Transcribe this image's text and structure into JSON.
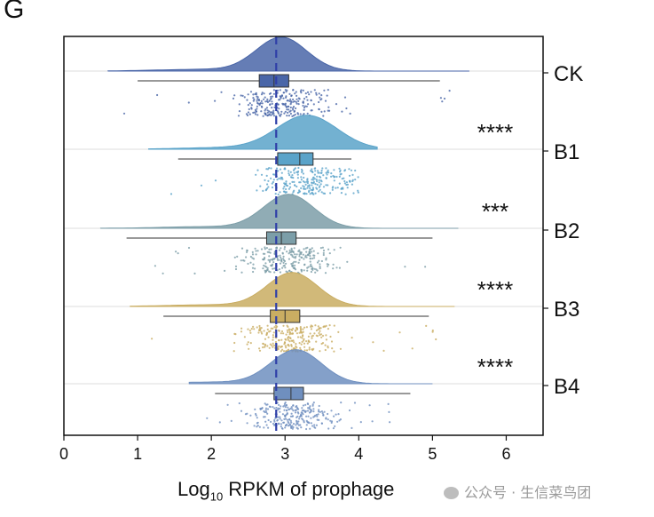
{
  "panel_label": "G",
  "watermark": "公众号 · 生信菜鸟团",
  "x_axis": {
    "label_prefix": "Log",
    "label_sub": "10",
    "label_suffix": " RPKM of prophage"
  },
  "chart_data": {
    "type": "raincloud",
    "orientation": "horizontal",
    "xlim": [
      0,
      6.5
    ],
    "x_ticks": [
      0,
      1,
      2,
      3,
      4,
      5,
      6
    ],
    "reference_line": {
      "x": 2.88,
      "style": "dashed",
      "color": "#2f3fa8"
    },
    "groups": [
      {
        "name": "CK",
        "color": "#4a66a8",
        "significance": "",
        "box": {
          "whisker_low": 1.0,
          "q1": 2.65,
          "median": 2.85,
          "q3": 3.05,
          "whisker_high": 5.1
        },
        "density_range": [
          0.6,
          5.5
        ],
        "density_peak": 2.95
      },
      {
        "name": "B1",
        "color": "#5aa3c9",
        "significance": "****",
        "box": {
          "whisker_low": 1.55,
          "q1": 2.9,
          "median": 3.2,
          "q3": 3.38,
          "whisker_high": 3.9
        },
        "density_range": [
          1.15,
          4.25
        ],
        "density_peak": 3.3
      },
      {
        "name": "B2",
        "color": "#7c9ea8",
        "significance": "***",
        "box": {
          "whisker_low": 0.85,
          "q1": 2.75,
          "median": 2.95,
          "q3": 3.15,
          "whisker_high": 5.0
        },
        "density_range": [
          0.5,
          5.35
        ],
        "density_peak": 3.05
      },
      {
        "name": "B3",
        "color": "#c9ad62",
        "significance": "****",
        "box": {
          "whisker_low": 1.35,
          "q1": 2.8,
          "median": 3.0,
          "q3": 3.2,
          "whisker_high": 4.95
        },
        "density_range": [
          0.9,
          5.3
        ],
        "density_peak": 3.1
      },
      {
        "name": "B4",
        "color": "#6f8fbf",
        "significance": "****",
        "box": {
          "whisker_low": 2.05,
          "q1": 2.85,
          "median": 3.08,
          "q3": 3.25,
          "whisker_high": 4.7
        },
        "density_range": [
          1.7,
          5.0
        ],
        "density_peak": 3.15
      }
    ]
  }
}
